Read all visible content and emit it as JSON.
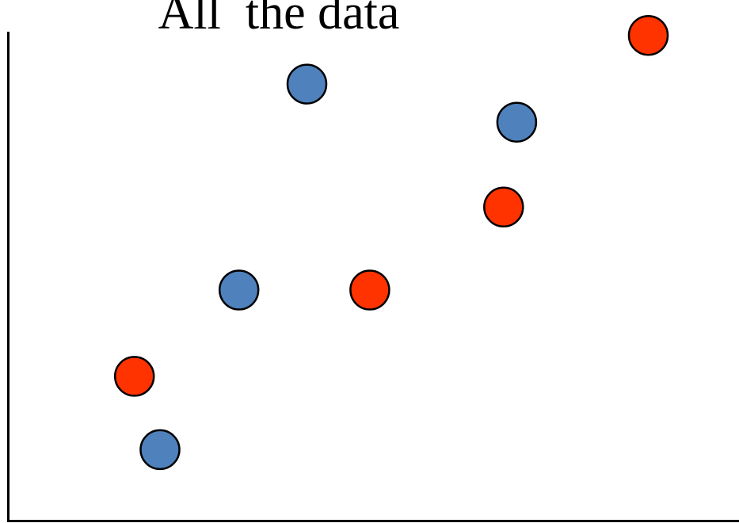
{
  "chart_data": {
    "type": "scatter",
    "title": "All  the data",
    "xlabel": "",
    "ylabel": "",
    "grid": false,
    "legend": "none",
    "xlim": [
      0,
      100
    ],
    "ylim": [
      0,
      100
    ],
    "series": [
      {
        "color": "#4F81BD",
        "points": [
          {
            "x": 20.8,
            "y": 14.4
          },
          {
            "x": 31.6,
            "y": 47.5
          },
          {
            "x": 40.9,
            "y": 90.2
          },
          {
            "x": 69.6,
            "y": 82.3
          }
        ]
      },
      {
        "color": "#FF3300",
        "points": [
          {
            "x": 17.3,
            "y": 29.6
          },
          {
            "x": 49.5,
            "y": 47.5
          },
          {
            "x": 67.8,
            "y": 64.7
          },
          {
            "x": 87.6,
            "y": 100.3
          }
        ]
      }
    ]
  }
}
